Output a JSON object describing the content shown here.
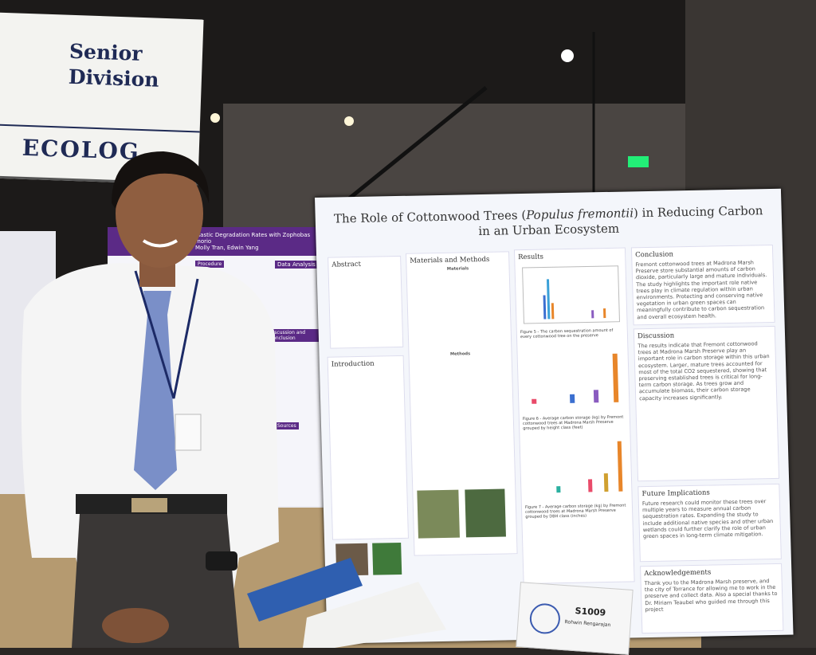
{
  "sign": {
    "line1": "Senior",
    "line2": "Division",
    "line3": "ECOLOG"
  },
  "left_poster": {
    "title": "Plastic Degradation Rates with Zophobas morio",
    "authors": "Molly Tran, Edwin Yang",
    "headings": [
      "Procedure",
      "Data Analysis",
      "Discussion and Conclusion",
      "Sources"
    ]
  },
  "poster": {
    "title_start": "The Role of Cottonwood Trees (",
    "title_species": "Populus fremontii",
    "title_end": ") in Reducing Carbon in an Urban Ecosystem",
    "abstract": {
      "heading": "Abstract"
    },
    "introduction": {
      "heading": "Introduction"
    },
    "materials_methods": {
      "heading": "Materials and Methods",
      "materials": "Materials",
      "methods": "Methods"
    },
    "results": {
      "heading": "Results",
      "figure5": "Figure 5 - The carbon sequestration amount of every cottonwood tree on the preserve",
      "figure6": "Figure 6 - Average carbon storage (kg) by Fremont cottonwood trees at Madrona Marsh Preserve grouped by height class (feet)",
      "figure7": "Figure 7 - Average carbon storage (kg) by Fremont cottonwood trees at Madrona Marsh Preserve grouped by DBH class (inches)"
    },
    "conclusion": {
      "heading": "Conclusion",
      "text": "Fremont cottonwood trees at Madrona Marsh Preserve store substantial amounts of carbon dioxide, particularly large and mature individuals. The study highlights the important role native trees play in climate regulation within urban environments. Protecting and conserving native vegetation in urban green spaces can meaningfully contribute to carbon sequestration and overall ecosystem health."
    },
    "discussion": {
      "heading": "Discussion",
      "text": "The results indicate that Fremont cottonwood trees at Madrona Marsh Preserve play an important role in carbon storage within this urban ecosystem. Larger, mature trees accounted for most of the total CO2 sequestered, showing that preserving established trees is critical for long-term carbon storage. As trees grow and accumulate biomass, their carbon storage capacity increases significantly."
    },
    "future": {
      "heading": "Future Implications",
      "text": "Future research could monitor these trees over multiple years to measure annual carbon sequestration rates. Expanding the study to include additional native species and other urban wetlands could further clarify the role of urban green spaces in long-term climate mitigation."
    },
    "acknowledgements": {
      "heading": "Acknowledgements",
      "text": "Thank you to the Madrona Marsh preserve, and the city of Torrance for allowing me to work in the preserve and collect data. Also a special thanks to Dr. Miriam Teaubel who guided me through this project"
    }
  },
  "placard": {
    "id": "S1009",
    "name": "Rohwin Rengarajan"
  }
}
